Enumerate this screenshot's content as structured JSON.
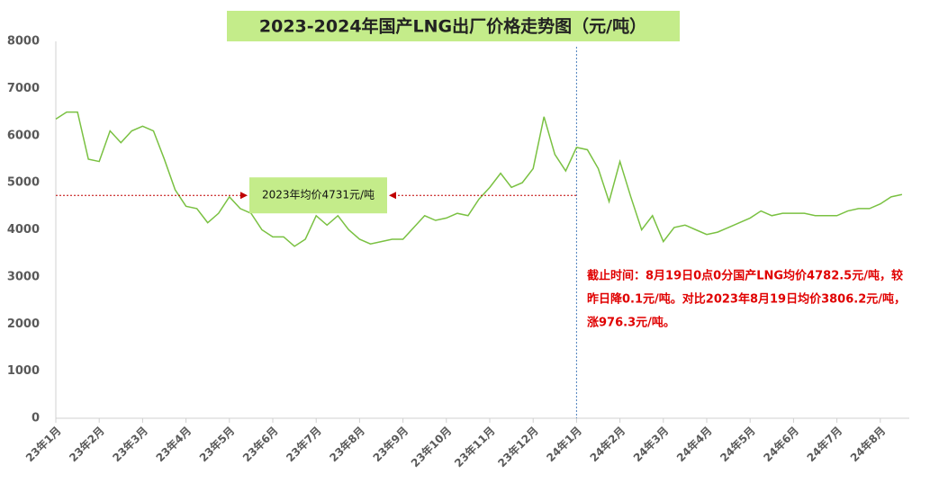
{
  "chart_data": {
    "type": "line",
    "title": "2023-2024年国产LNG出厂价格走势图（元/吨）",
    "x": [
      "23年1月",
      null,
      null,
      null,
      "23年2月",
      null,
      null,
      null,
      "23年3月",
      null,
      null,
      null,
      "23年4月",
      null,
      null,
      null,
      "23年5月",
      null,
      null,
      null,
      "23年6月",
      null,
      null,
      null,
      "23年7月",
      null,
      null,
      null,
      "23年8月",
      null,
      null,
      null,
      "23年9月",
      null,
      null,
      null,
      "23年10月",
      null,
      null,
      null,
      "23年11月",
      null,
      null,
      null,
      "23年12月",
      null,
      null,
      null,
      "24年1月",
      null,
      null,
      null,
      "24年2月",
      null,
      null,
      null,
      "24年3月",
      null,
      null,
      null,
      "24年4月",
      null,
      null,
      null,
      "24年5月",
      null,
      null,
      null,
      "24年6月",
      null,
      null,
      null,
      "24年7月",
      null,
      null,
      null,
      "24年8月",
      null,
      null
    ],
    "series": [
      {
        "name": "LNG出厂价格",
        "color": "#7ac142",
        "values": [
          6350,
          6500,
          6500,
          5500,
          5450,
          6100,
          5850,
          6100,
          6200,
          6100,
          5500,
          4850,
          4500,
          4450,
          4150,
          4350,
          4700,
          4450,
          4350,
          4000,
          3850,
          3850,
          3650,
          3800,
          4300,
          4100,
          4300,
          4000,
          3800,
          3700,
          3750,
          3800,
          3800,
          4050,
          4300,
          4200,
          4250,
          4350,
          4300,
          4650,
          4900,
          5200,
          4900,
          5000,
          5300,
          6400,
          5600,
          5250,
          5750,
          5700,
          5300,
          4600,
          5450,
          4700,
          4000,
          4300,
          3750,
          4050,
          4100,
          4000,
          3900,
          3950,
          4050,
          4150,
          4250,
          4400,
          4300,
          4350,
          4350,
          4350,
          4300,
          4300,
          4300,
          4400,
          4450,
          4450,
          4550,
          4700,
          4750
        ]
      }
    ],
    "ylim": [
      0,
      8000
    ],
    "yticks": [
      0,
      1000,
      2000,
      3000,
      4000,
      5000,
      6000,
      7000,
      8000
    ],
    "grid": false,
    "average": {
      "value": 4731,
      "label": "2023年均价4731元/吨",
      "color": "#c00000"
    },
    "note": [
      "截止时间：8月19日0点0分国产LNG均价4782.5元/吨，较",
      "昨日降0.1元/吨。对比2023年8月19日均价3806.2元/吨，",
      "涨976.3元/吨。"
    ],
    "note_color": "#e00000"
  }
}
